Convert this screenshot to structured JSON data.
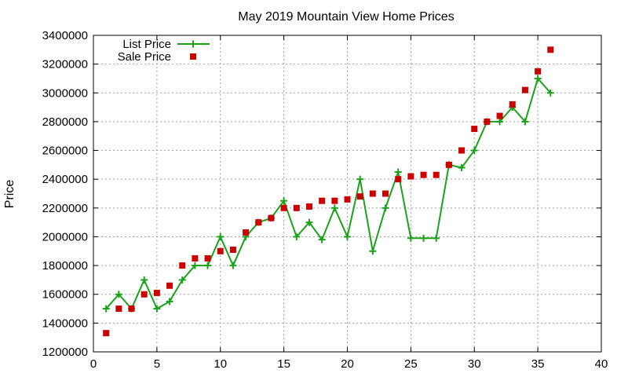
{
  "chart_data": {
    "type": "scatter",
    "title": "May 2019 Mountain View Home Prices",
    "xlabel": "",
    "ylabel": "Price",
    "xlim": [
      0,
      40
    ],
    "ylim": [
      1200000,
      3400000
    ],
    "xticks": [
      0,
      5,
      10,
      15,
      20,
      25,
      30,
      35,
      40
    ],
    "yticks": [
      1200000,
      1400000,
      1600000,
      1800000,
      2000000,
      2200000,
      2400000,
      2600000,
      2800000,
      3000000,
      3200000,
      3400000
    ],
    "grid": true,
    "legend_position": "top-left",
    "x": [
      1,
      2,
      3,
      4,
      5,
      6,
      7,
      8,
      9,
      10,
      11,
      12,
      13,
      14,
      15,
      16,
      17,
      18,
      19,
      20,
      21,
      22,
      23,
      24,
      25,
      26,
      27,
      28,
      29,
      30,
      31,
      32,
      33,
      34,
      35,
      36
    ],
    "series": [
      {
        "name": "List Price",
        "style": "line+marker",
        "marker": "plus",
        "color": "#1aa31a",
        "values": [
          1500000,
          1600000,
          1500000,
          1700000,
          1500000,
          1550000,
          1700000,
          1800000,
          1800000,
          2000000,
          1800000,
          2000000,
          2100000,
          2130000,
          2250000,
          2000000,
          2100000,
          1980000,
          2200000,
          2000000,
          2400000,
          1900000,
          2200000,
          2450000,
          1990000,
          1990000,
          1990000,
          2500000,
          2480000,
          2600000,
          2800000,
          2800000,
          2900000,
          2800000,
          3100000,
          3000000
        ]
      },
      {
        "name": "Sale Price",
        "style": "marker",
        "marker": "square",
        "color": "#cc0000",
        "values": [
          1330000,
          1500000,
          1500000,
          1600000,
          1610000,
          1660000,
          1800000,
          1850000,
          1850000,
          1900000,
          1910000,
          2030000,
          2100000,
          2130000,
          2200000,
          2200000,
          2210000,
          2250000,
          2250000,
          2260000,
          2280000,
          2300000,
          2300000,
          2400000,
          2420000,
          2430000,
          2430000,
          2500000,
          2600000,
          2750000,
          2800000,
          2840000,
          2920000,
          3020000,
          3150000,
          3300000
        ]
      }
    ]
  }
}
